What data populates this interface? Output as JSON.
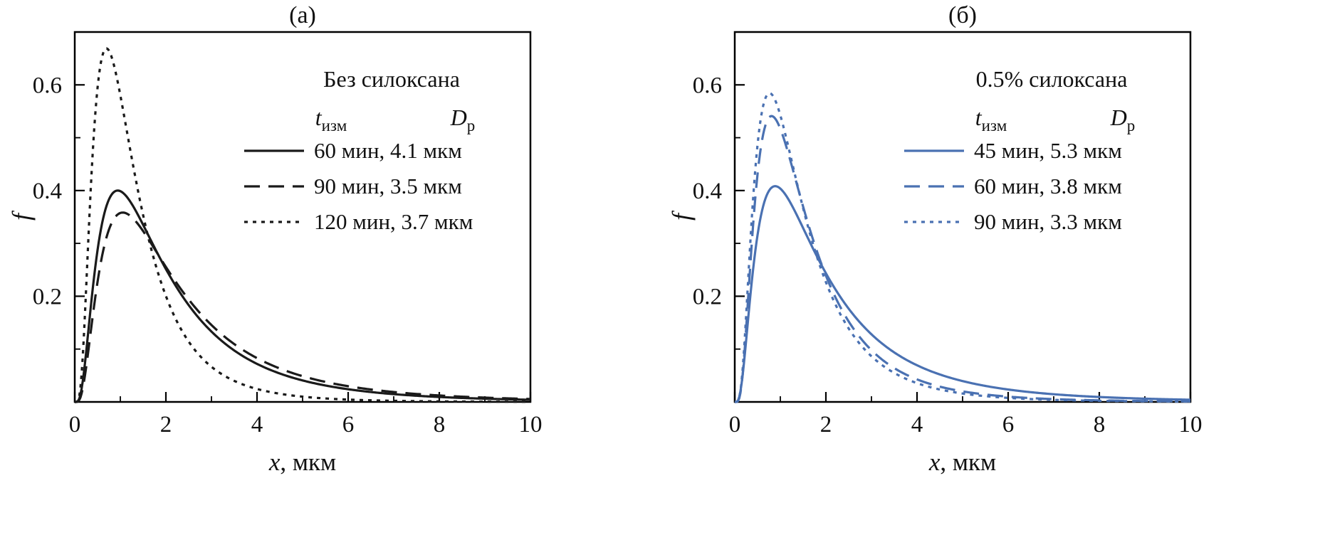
{
  "figure": {
    "background": "#ffffff",
    "axis_color": "#000000"
  },
  "chart_data": [
    {
      "type": "line",
      "panel_label": "(а)",
      "color": "#1a1a1a",
      "xlabel_italic": "x",
      "xlabel_rest": ", мкм",
      "ylabel": "f",
      "xlim": [
        0,
        10
      ],
      "ylim": [
        0,
        0.7
      ],
      "xticks": [
        0,
        2,
        4,
        6,
        8,
        10
      ],
      "yticks": [
        0.2,
        0.4,
        0.6
      ],
      "grid": false,
      "legend_position": "top-right-inside",
      "legend": {
        "title": "Без силоксана",
        "col1_main": "t",
        "col1_sub": "изм",
        "col2_main": "D",
        "col2_sub": "p"
      },
      "series": [
        {
          "label": "60 мин, 4.1 мкм",
          "time_min": 60,
          "Dp_um": 4.1,
          "style": "solid",
          "dist": "lognormal",
          "mu": 0.55,
          "sigma": 0.78,
          "peak_x": 0.94,
          "peak_y": 0.4
        },
        {
          "label": "90 мин, 3.5 мкм",
          "time_min": 90,
          "Dp_um": 3.5,
          "style": "dashed",
          "dist": "lognormal",
          "mu": 0.66,
          "sigma": 0.78,
          "peak_x": 1.05,
          "peak_y": 0.36
        },
        {
          "label": "120 мин, 3.7 мкм",
          "time_min": 120,
          "Dp_um": 3.7,
          "style": "dotted",
          "dist": "lognormal",
          "mu": 0.1,
          "sigma": 0.68,
          "peak_x": 0.7,
          "peak_y": 0.67
        }
      ]
    },
    {
      "type": "line",
      "panel_label": "(б)",
      "color": "#4a71b2",
      "xlabel_italic": "x",
      "xlabel_rest": ", мкм",
      "ylabel": "f",
      "xlim": [
        0,
        10
      ],
      "ylim": [
        0,
        0.7
      ],
      "xticks": [
        0,
        2,
        4,
        6,
        8,
        10
      ],
      "yticks": [
        0.2,
        0.4,
        0.6
      ],
      "grid": false,
      "legend_position": "top-right-inside",
      "legend": {
        "title": "0.5% силоксана",
        "col1_main": "t",
        "col1_sub": "изм",
        "col2_main": "D",
        "col2_sub": "p"
      },
      "series": [
        {
          "label": "45 мин, 5.3 мкм",
          "time_min": 45,
          "Dp_um": 5.3,
          "style": "solid",
          "dist": "lognormal",
          "mu": 0.52,
          "sigma": 0.8,
          "peak_x": 0.89,
          "peak_y": 0.41
        },
        {
          "label": "60 мин, 3.8 мкм",
          "time_min": 60,
          "Dp_um": 3.8,
          "style": "dashed",
          "dist": "lognormal",
          "mu": 0.29,
          "sigma": 0.71,
          "peak_x": 0.81,
          "peak_y": 0.54
        },
        {
          "label": "90 мин, 3.3 мкм",
          "time_min": 90,
          "Dp_um": 3.3,
          "style": "dotted",
          "dist": "lognormal",
          "mu": 0.22,
          "sigma": 0.7,
          "peak_x": 0.76,
          "peak_y": 0.59
        }
      ]
    }
  ]
}
